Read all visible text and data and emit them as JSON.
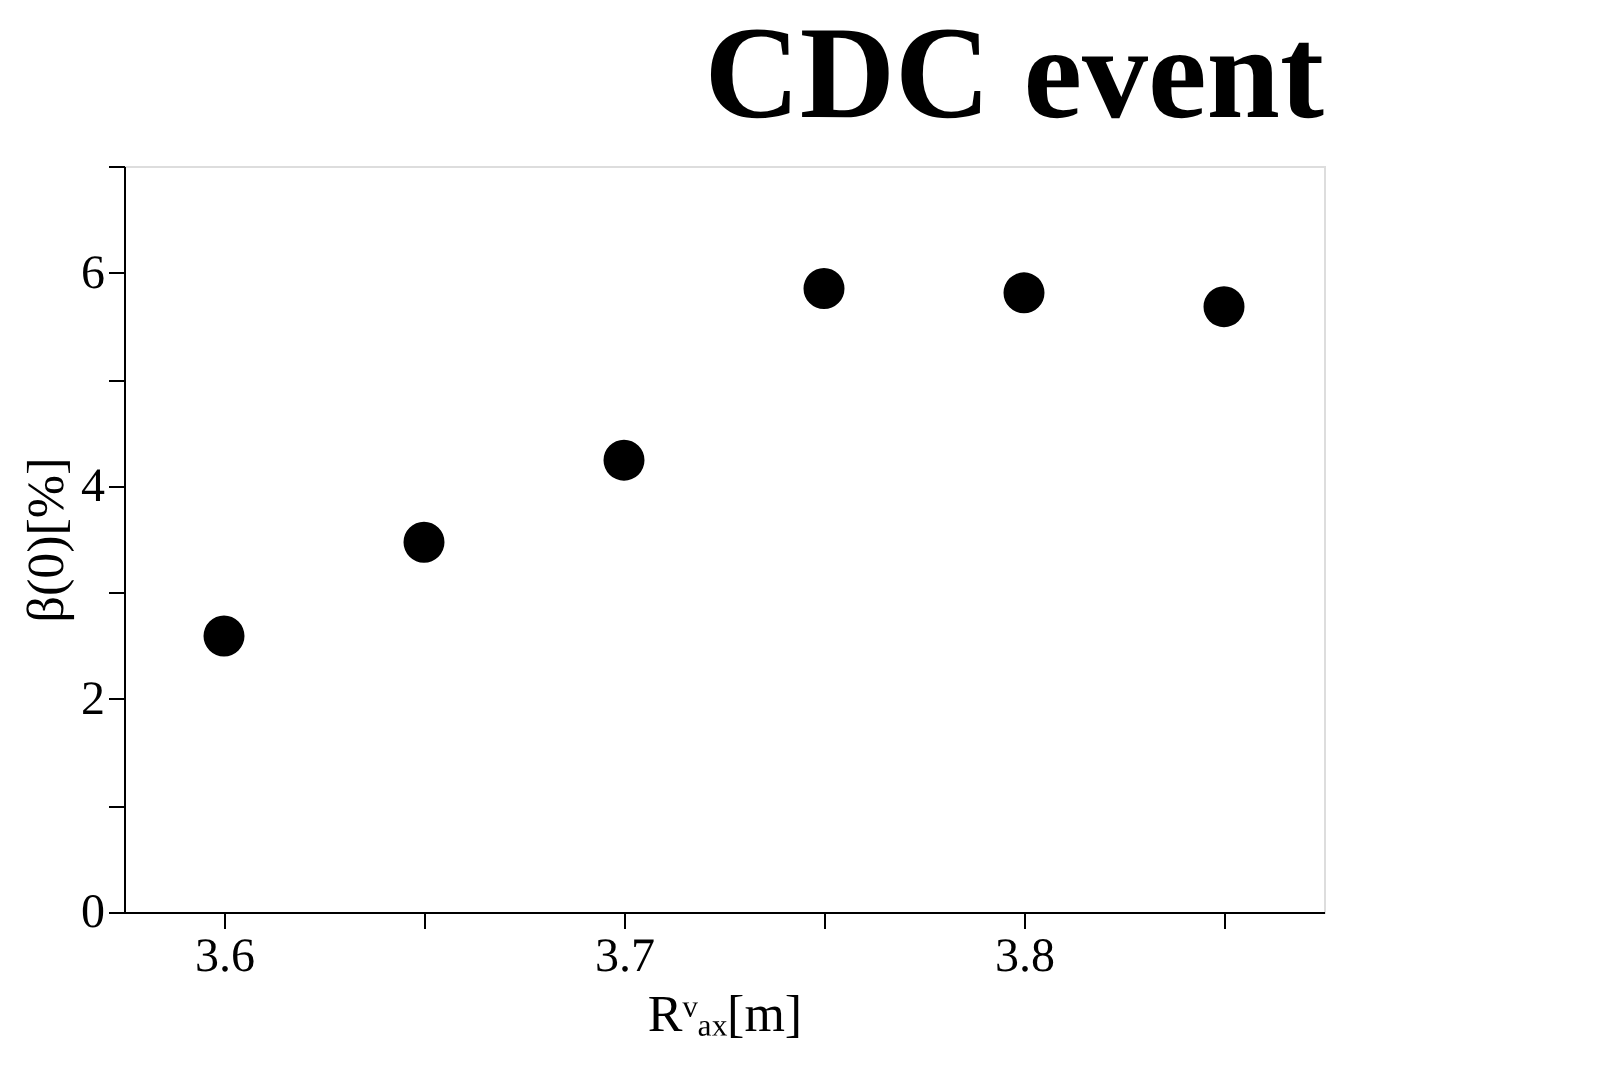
{
  "chart_data": {
    "type": "scatter",
    "title": "CDC event",
    "xlabel": "Rᵛₐₓ[m]",
    "ylabel": "β(0)[%]",
    "x": [
      3.6,
      3.65,
      3.7,
      3.75,
      3.8,
      3.85
    ],
    "series": [
      {
        "color": "#000000",
        "values": [
          2.59,
          3.47,
          4.24,
          5.85,
          5.81,
          5.68
        ]
      }
    ],
    "xlim": [
      3.575,
      3.875
    ],
    "xticks": [
      3.6,
      {
        "value": 3.65,
        "label": null
      },
      3.7,
      {
        "value": 3.75,
        "label": null
      },
      3.8,
      {
        "value": 3.85,
        "label": null
      }
    ],
    "ylim": [
      0,
      7
    ],
    "yticks": [
      0,
      {
        "value": 1,
        "label": null
      },
      2,
      {
        "value": 3,
        "label": null
      },
      4,
      {
        "value": 5,
        "label": null
      },
      6,
      {
        "value": 7,
        "label": null
      }
    ],
    "marker": "circle",
    "grid": false,
    "legend": false
  }
}
